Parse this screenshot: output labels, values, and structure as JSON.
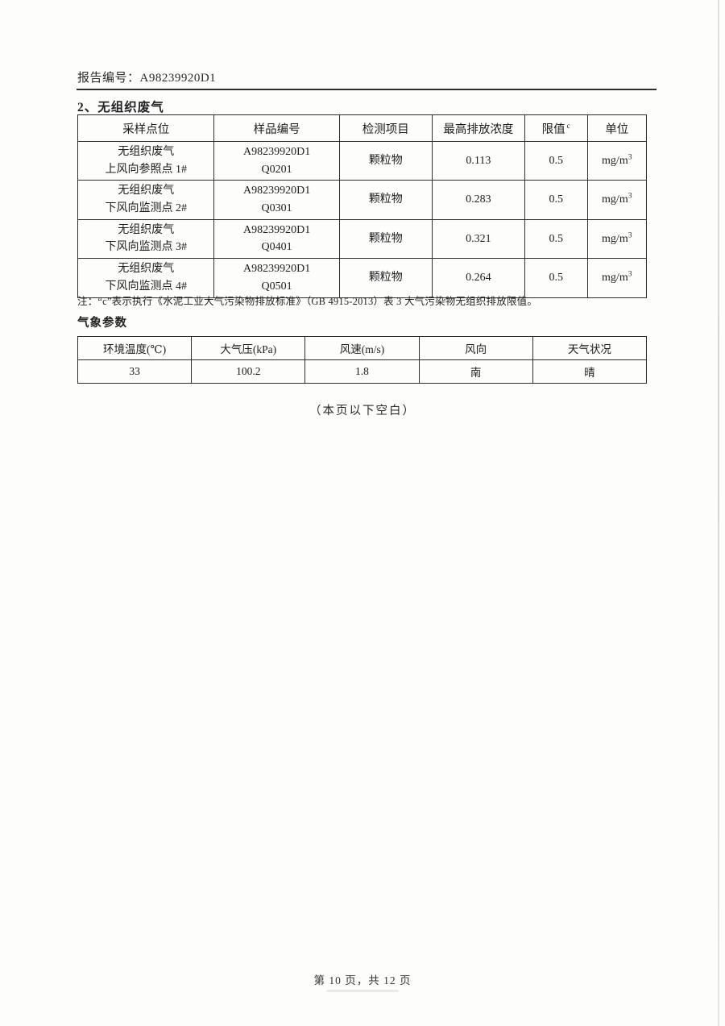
{
  "page": {
    "report_label": "报告编号：A98239920D1",
    "section_title": "2、无组织废气",
    "note": "注：“c”表示执行《水泥工业大气污染物排放标准》（GB 4915-2013）表 3 大气污染物无组织排放限值。",
    "weather_title": "气象参数",
    "blank_note": "（本页以下空白）",
    "footer": "第 10 页，共 12 页"
  },
  "emission_table": {
    "headers": {
      "sampling_point": "采样点位",
      "sample_id": "样品编号",
      "test_item": "检测项目",
      "max_concentration": "最高排放浓度",
      "limit_base": "限值",
      "limit_sup": "c",
      "unit": "单位"
    },
    "rows": [
      {
        "loc1": "无组织废气",
        "loc2": "上风向参照点 1#",
        "sample1": "A98239920D1",
        "sample2": "Q0201",
        "item": "颗粒物",
        "max_conc": "0.113",
        "limit": "0.5",
        "unit_base": "mg/m",
        "unit_sup": "3"
      },
      {
        "loc1": "无组织废气",
        "loc2": "下风向监测点 2#",
        "sample1": "A98239920D1",
        "sample2": "Q0301",
        "item": "颗粒物",
        "max_conc": "0.283",
        "limit": "0.5",
        "unit_base": "mg/m",
        "unit_sup": "3"
      },
      {
        "loc1": "无组织废气",
        "loc2": "下风向监测点 3#",
        "sample1": "A98239920D1",
        "sample2": "Q0401",
        "item": "颗粒物",
        "max_conc": "0.321",
        "limit": "0.5",
        "unit_base": "mg/m",
        "unit_sup": "3"
      },
      {
        "loc1": "无组织废气",
        "loc2": "下风向监测点 4#",
        "sample1": "A98239920D1",
        "sample2": "Q0501",
        "item": "颗粒物",
        "max_conc": "0.264",
        "limit": "0.5",
        "unit_base": "mg/m",
        "unit_sup": "3"
      }
    ]
  },
  "weather_table": {
    "headers": [
      "环境温度(℃)",
      "大气压(kPa)",
      "风速(m/s)",
      "风向",
      "天气状况"
    ],
    "values": [
      "33",
      "100.2",
      "1.8",
      "南",
      "晴"
    ]
  }
}
